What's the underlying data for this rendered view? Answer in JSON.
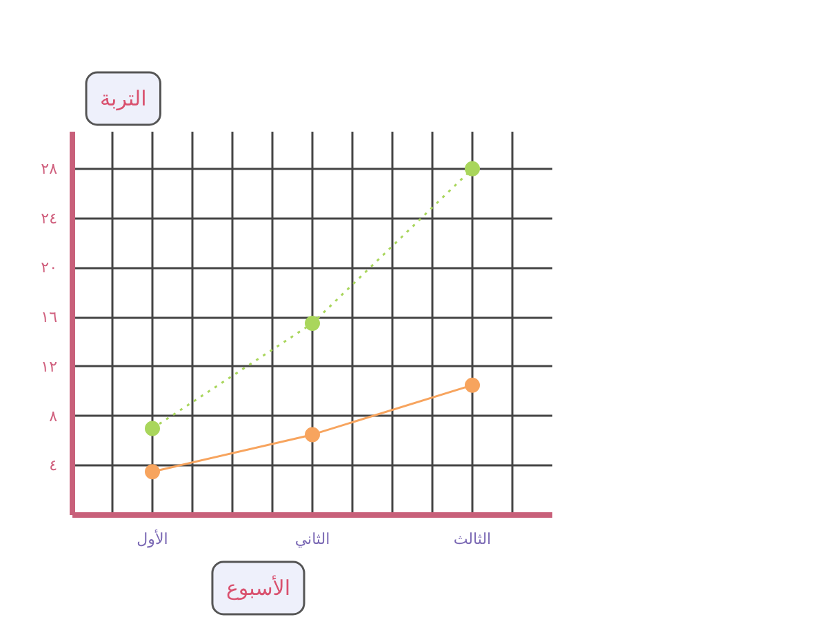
{
  "chart_data": {
    "type": "line",
    "xlabel": "الأسبوع",
    "ylabel": "التربة",
    "categories": [
      "الأول",
      "الثاني",
      "الثالث"
    ],
    "series": [
      {
        "color": "#a9d65c",
        "values": [
          7,
          15.5,
          28
        ],
        "line_style": "dotted"
      },
      {
        "color": "#f7a45e",
        "values": [
          3.5,
          6.5,
          10.5
        ],
        "line_style": "solid"
      }
    ],
    "ylim": [
      0,
      31
    ],
    "yticks": [
      {
        "value": 4,
        "label": "٤"
      },
      {
        "value": 8,
        "label": "٨"
      },
      {
        "value": 12,
        "label": "١٢"
      },
      {
        "value": 16,
        "label": "١٦"
      },
      {
        "value": 20,
        "label": "٢٠"
      },
      {
        "value": 24,
        "label": "٢٤"
      },
      {
        "value": 28,
        "label": "٢٨"
      }
    ],
    "grid": true,
    "marker": "circle"
  }
}
